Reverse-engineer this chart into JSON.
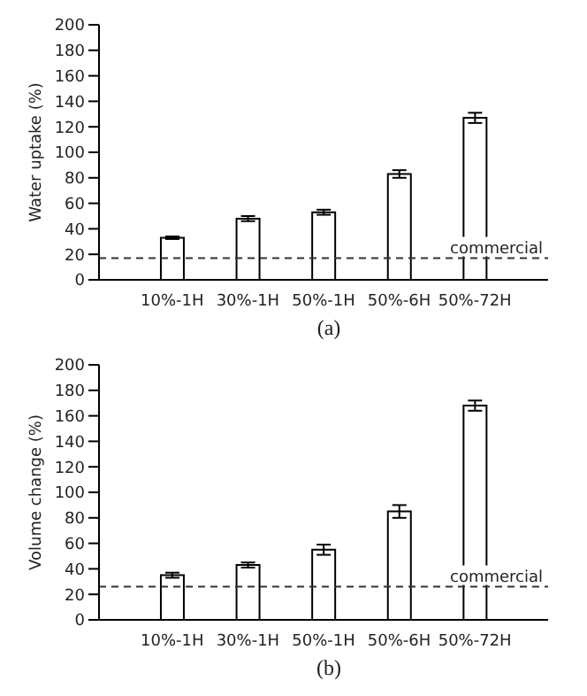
{
  "chart_data": [
    {
      "type": "bar",
      "ylabel": "Water uptake (%)",
      "categories": [
        "10%-1H",
        "30%-1H",
        "50%-1H",
        "50%-6H",
        "50%-72H"
      ],
      "values": [
        33,
        48,
        53,
        83,
        127
      ],
      "errors": [
        1,
        2,
        2,
        3,
        4
      ],
      "color": "#ffffff",
      "ylim": [
        0,
        200
      ],
      "yticks": [
        0,
        20,
        40,
        60,
        80,
        100,
        120,
        140,
        160,
        180,
        200
      ],
      "grid": false,
      "ref_lines": [
        {
          "axis": "y",
          "value": 17,
          "label": "commercial",
          "color": "#333333",
          "line_style": "dashed"
        }
      ],
      "annotations": [
        "(a)"
      ]
    },
    {
      "type": "bar",
      "ylabel": "Volume change (%)",
      "categories": [
        "10%-1H",
        "30%-1H",
        "50%-1H",
        "50%-6H",
        "50%-72H"
      ],
      "values": [
        35,
        43,
        55,
        85,
        168
      ],
      "errors": [
        2,
        2,
        4,
        5,
        4
      ],
      "color": "#ffffff",
      "ylim": [
        0,
        200
      ],
      "yticks": [
        0,
        20,
        40,
        60,
        80,
        100,
        120,
        140,
        160,
        180,
        200
      ],
      "grid": false,
      "ref_lines": [
        {
          "axis": "y",
          "value": 26,
          "label": "commercial",
          "color": "#333333",
          "line_style": "dashed"
        }
      ],
      "annotations": [
        "(b)"
      ]
    }
  ]
}
